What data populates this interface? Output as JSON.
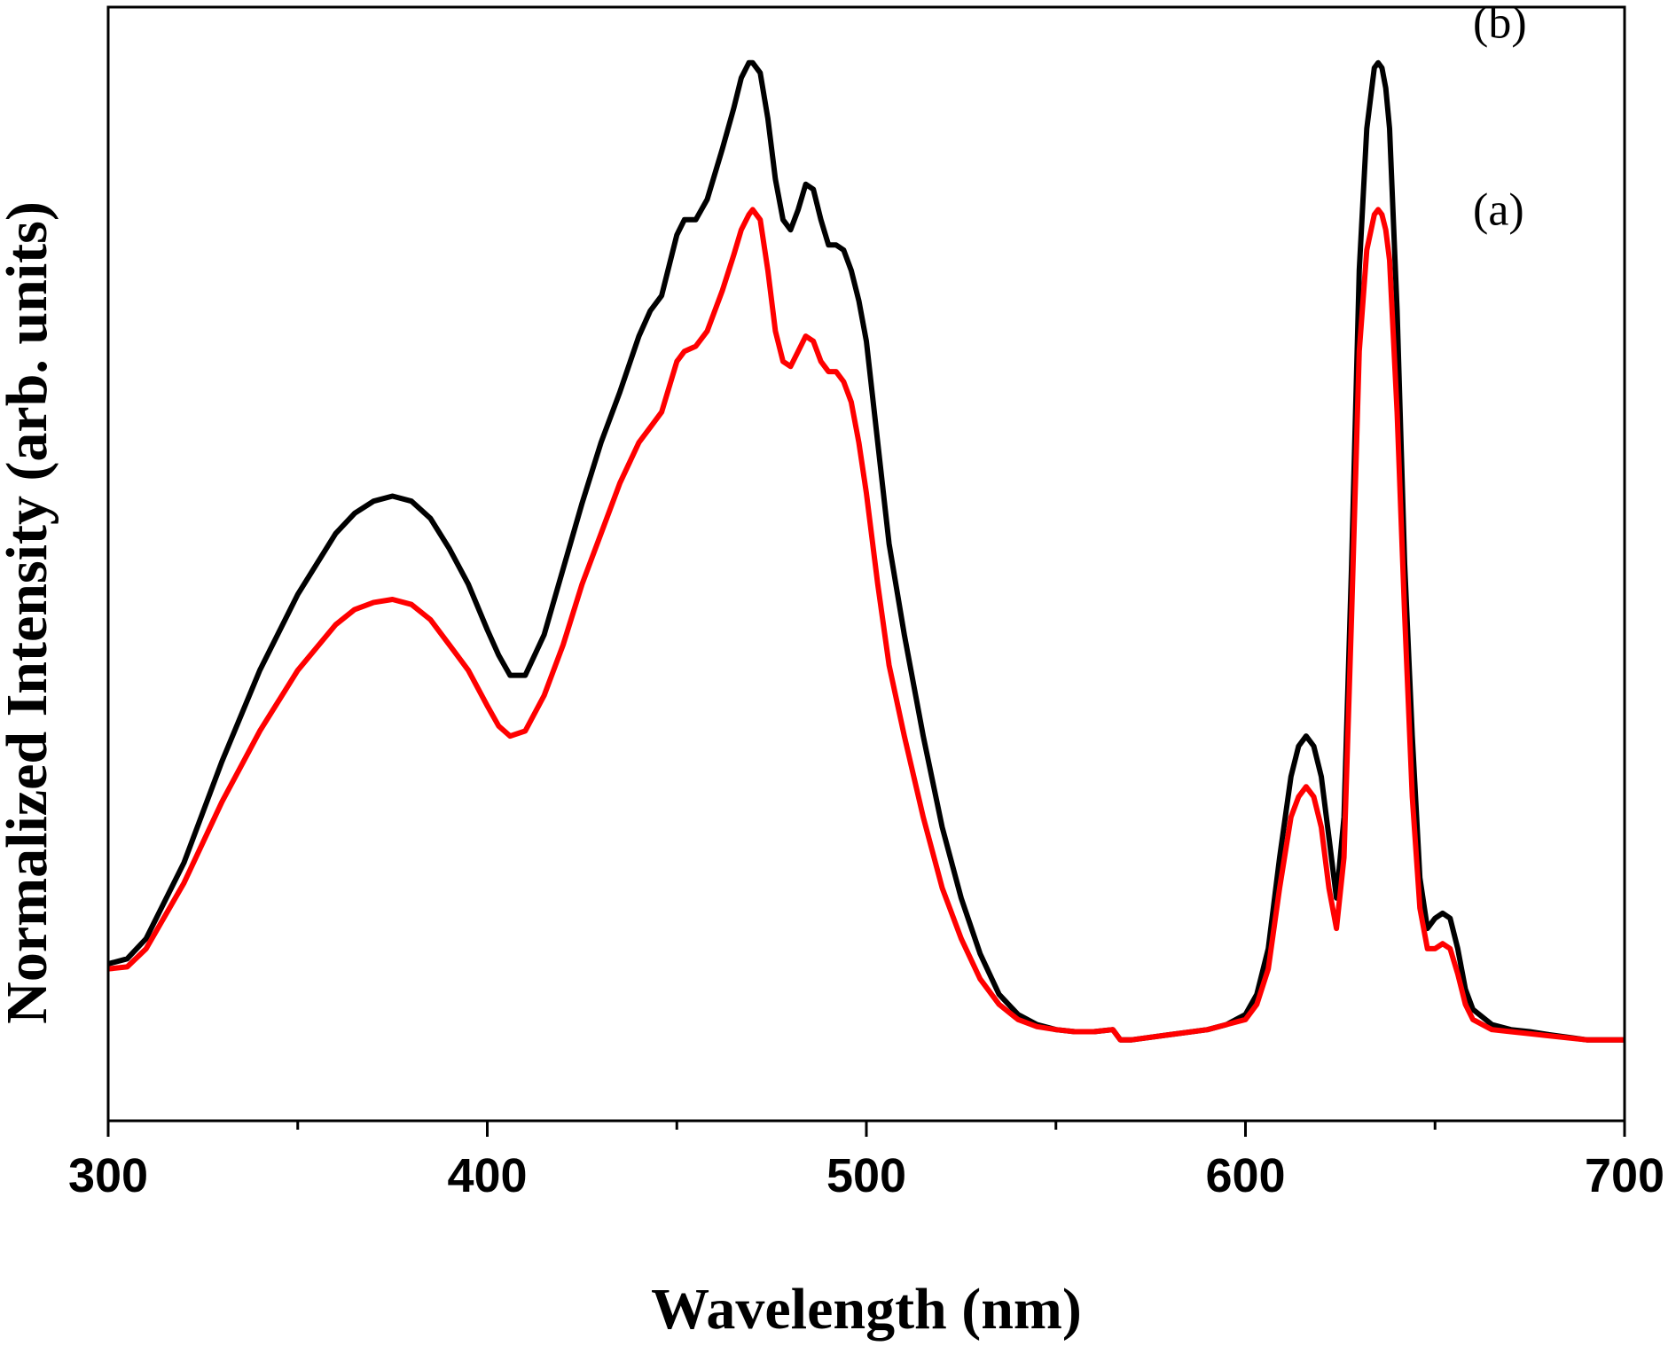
{
  "chart_data": {
    "type": "line",
    "xlabel": "Wavelength (nm)",
    "ylabel": "Normalized Intensity (arb. units)",
    "xlim": [
      300,
      700
    ],
    "ylim": [
      0,
      1.1
    ],
    "x_ticks": [
      300,
      400,
      500,
      600,
      700
    ],
    "x_minor_ticks": [
      350,
      450,
      550,
      650
    ],
    "y_ticks_shown": false,
    "grid": false,
    "legend": "none",
    "annotations": [
      {
        "text": "(b)",
        "x": 660,
        "y": 1.07
      },
      {
        "text": "(a)",
        "x": 660,
        "y": 0.885
      }
    ],
    "series": [
      {
        "color": "#000000",
        "x": [
          300,
          305,
          310,
          320,
          330,
          340,
          350,
          360,
          365,
          370,
          375,
          380,
          385,
          390,
          395,
          400,
          403,
          406,
          410,
          415,
          420,
          425,
          430,
          435,
          440,
          443,
          446,
          450,
          452,
          455,
          458,
          462,
          465,
          467,
          469,
          470,
          472,
          474,
          476,
          478,
          480,
          482,
          484,
          486,
          488,
          490,
          492,
          494,
          496,
          498,
          500,
          503,
          506,
          510,
          515,
          520,
          525,
          530,
          535,
          540,
          545,
          550,
          555,
          560,
          565,
          567,
          570,
          580,
          590,
          595,
          600,
          603,
          606,
          609,
          612,
          614,
          616,
          618,
          620,
          622,
          624,
          626,
          628,
          630,
          632,
          634,
          635,
          636,
          637,
          638,
          640,
          642,
          644,
          646,
          648,
          650,
          652,
          654,
          656,
          658,
          660,
          665,
          670,
          675,
          680,
          690,
          700
        ],
        "values": [
          0.155,
          0.16,
          0.18,
          0.255,
          0.355,
          0.445,
          0.52,
          0.58,
          0.6,
          0.612,
          0.617,
          0.612,
          0.595,
          0.565,
          0.53,
          0.485,
          0.46,
          0.44,
          0.44,
          0.48,
          0.545,
          0.61,
          0.67,
          0.72,
          0.775,
          0.8,
          0.815,
          0.875,
          0.89,
          0.89,
          0.91,
          0.96,
          1.0,
          1.03,
          1.045,
          1.045,
          1.035,
          0.99,
          0.93,
          0.89,
          0.88,
          0.9,
          0.925,
          0.92,
          0.89,
          0.865,
          0.865,
          0.86,
          0.84,
          0.81,
          0.77,
          0.67,
          0.57,
          0.48,
          0.38,
          0.29,
          0.22,
          0.165,
          0.125,
          0.105,
          0.095,
          0.09,
          0.088,
          0.088,
          0.09,
          0.08,
          0.08,
          0.085,
          0.09,
          0.095,
          0.105,
          0.125,
          0.17,
          0.26,
          0.34,
          0.37,
          0.38,
          0.37,
          0.34,
          0.28,
          0.22,
          0.3,
          0.55,
          0.84,
          0.98,
          1.04,
          1.045,
          1.04,
          1.02,
          0.98,
          0.8,
          0.55,
          0.38,
          0.24,
          0.19,
          0.2,
          0.205,
          0.2,
          0.17,
          0.13,
          0.11,
          0.095,
          0.09,
          0.088,
          0.085,
          0.08,
          0.08
        ]
      },
      {
        "color": "#ff0000",
        "x": [
          300,
          305,
          310,
          320,
          330,
          340,
          350,
          360,
          365,
          370,
          375,
          380,
          385,
          390,
          395,
          400,
          403,
          406,
          410,
          415,
          420,
          425,
          430,
          435,
          440,
          443,
          446,
          450,
          452,
          455,
          458,
          462,
          465,
          467,
          469,
          470,
          472,
          474,
          476,
          478,
          480,
          482,
          484,
          486,
          488,
          490,
          492,
          494,
          496,
          498,
          500,
          503,
          506,
          510,
          515,
          520,
          525,
          530,
          535,
          540,
          545,
          550,
          555,
          560,
          565,
          567,
          570,
          580,
          590,
          595,
          600,
          603,
          606,
          609,
          612,
          614,
          616,
          618,
          620,
          622,
          624,
          626,
          628,
          630,
          632,
          634,
          635,
          636,
          637,
          638,
          640,
          642,
          644,
          646,
          648,
          650,
          652,
          654,
          656,
          658,
          660,
          665,
          670,
          675,
          680,
          690,
          700
        ],
        "values": [
          0.15,
          0.152,
          0.17,
          0.235,
          0.315,
          0.385,
          0.445,
          0.49,
          0.505,
          0.512,
          0.515,
          0.51,
          0.495,
          0.47,
          0.445,
          0.41,
          0.39,
          0.38,
          0.385,
          0.42,
          0.47,
          0.53,
          0.58,
          0.63,
          0.67,
          0.685,
          0.7,
          0.75,
          0.76,
          0.765,
          0.78,
          0.82,
          0.855,
          0.88,
          0.895,
          0.9,
          0.89,
          0.84,
          0.78,
          0.75,
          0.745,
          0.76,
          0.775,
          0.77,
          0.75,
          0.74,
          0.74,
          0.73,
          0.71,
          0.67,
          0.62,
          0.53,
          0.45,
          0.38,
          0.3,
          0.23,
          0.18,
          0.14,
          0.115,
          0.1,
          0.093,
          0.09,
          0.088,
          0.088,
          0.09,
          0.08,
          0.08,
          0.085,
          0.09,
          0.095,
          0.1,
          0.115,
          0.15,
          0.23,
          0.3,
          0.32,
          0.33,
          0.32,
          0.29,
          0.23,
          0.19,
          0.26,
          0.5,
          0.76,
          0.86,
          0.895,
          0.9,
          0.895,
          0.88,
          0.85,
          0.7,
          0.5,
          0.32,
          0.21,
          0.17,
          0.17,
          0.175,
          0.17,
          0.145,
          0.115,
          0.1,
          0.09,
          0.088,
          0.086,
          0.084,
          0.08,
          0.08
        ]
      }
    ]
  }
}
